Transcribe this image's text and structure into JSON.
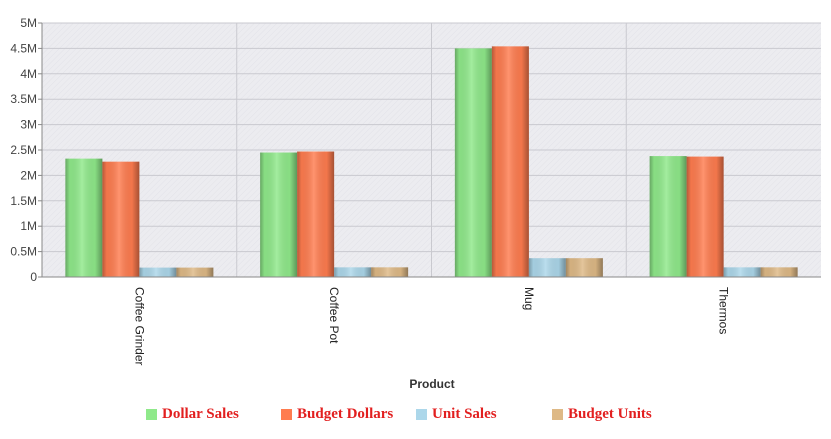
{
  "chart_data": {
    "type": "bar",
    "title": "",
    "xlabel": "Product",
    "ylabel": "",
    "categories": [
      "Coffee Grinder",
      "Coffee Pot",
      "Mug",
      "Thermos"
    ],
    "series": [
      {
        "name": "Dollar Sales",
        "color": "#8fe98a",
        "values": [
          2330000,
          2450000,
          4500000,
          2380000
        ]
      },
      {
        "name": "Budget Dollars",
        "color": "#ff7c4f",
        "values": [
          2270000,
          2470000,
          4540000,
          2370000
        ]
      },
      {
        "name": "Unit Sales",
        "color": "#acd7ea",
        "values": [
          185000,
          190000,
          370000,
          190000
        ]
      },
      {
        "name": "Budget Units",
        "color": "#deb986",
        "values": [
          185000,
          190000,
          370000,
          190000
        ]
      }
    ],
    "ylim": [
      0,
      5000000
    ],
    "yticks": [
      {
        "value": 0,
        "label": "0"
      },
      {
        "value": 500000,
        "label": "0.5M"
      },
      {
        "value": 1000000,
        "label": "1M"
      },
      {
        "value": 1500000,
        "label": "1.5M"
      },
      {
        "value": 2000000,
        "label": "2M"
      },
      {
        "value": 2500000,
        "label": "2.5M"
      },
      {
        "value": 3000000,
        "label": "3M"
      },
      {
        "value": 3500000,
        "label": "3.5M"
      },
      {
        "value": 4000000,
        "label": "4M"
      },
      {
        "value": 4500000,
        "label": "4.5M"
      },
      {
        "value": 5000000,
        "label": "5M"
      }
    ],
    "grid": true,
    "legend_position": "bottom"
  }
}
